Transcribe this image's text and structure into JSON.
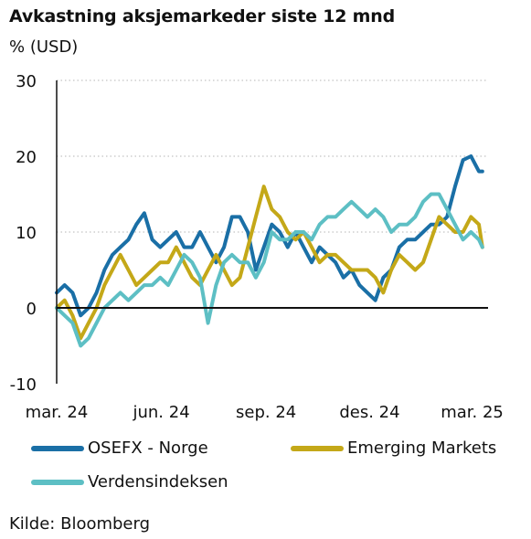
{
  "chart_data": {
    "type": "line",
    "title": "Avkastning aksjemarkeder siste 12 mnd",
    "ylabel": "% (USD)",
    "ylim": [
      -10,
      30
    ],
    "yticks": [
      30,
      20,
      10,
      0,
      -10
    ],
    "ytick_labels": [
      "30",
      "20",
      "10",
      "0",
      "-10"
    ],
    "x_range": [
      "2024-03-01",
      "2025-03-15"
    ],
    "xtick_labels": [
      {
        "date": "2024-03-01",
        "label": "mar. 24"
      },
      {
        "date": "2024-06-01",
        "label": "jun. 24"
      },
      {
        "date": "2024-09-01",
        "label": "sep. 24"
      },
      {
        "date": "2024-12-01",
        "label": "des. 24"
      },
      {
        "date": "2025-03-01",
        "label": "mar. 25"
      }
    ],
    "grid": "horizontal-dotted",
    "legend": "bottom",
    "series": [
      {
        "name": "OSEFX - Norge",
        "color": "#1a6fa6",
        "points": [
          [
            "2024-03-01",
            2
          ],
          [
            "2024-03-08",
            3
          ],
          [
            "2024-03-15",
            2
          ],
          [
            "2024-03-22",
            -1
          ],
          [
            "2024-03-29",
            0
          ],
          [
            "2024-04-05",
            2
          ],
          [
            "2024-04-12",
            5
          ],
          [
            "2024-04-19",
            7
          ],
          [
            "2024-04-26",
            8
          ],
          [
            "2024-05-03",
            9
          ],
          [
            "2024-05-10",
            11
          ],
          [
            "2024-05-17",
            12.5
          ],
          [
            "2024-05-24",
            9
          ],
          [
            "2024-05-31",
            8
          ],
          [
            "2024-06-07",
            9
          ],
          [
            "2024-06-14",
            10
          ],
          [
            "2024-06-21",
            8
          ],
          [
            "2024-06-28",
            8
          ],
          [
            "2024-07-05",
            10
          ],
          [
            "2024-07-12",
            8
          ],
          [
            "2024-07-19",
            6
          ],
          [
            "2024-07-26",
            8
          ],
          [
            "2024-08-02",
            12
          ],
          [
            "2024-08-09",
            12
          ],
          [
            "2024-08-16",
            10
          ],
          [
            "2024-08-23",
            5
          ],
          [
            "2024-08-30",
            8
          ],
          [
            "2024-09-06",
            11
          ],
          [
            "2024-09-13",
            10
          ],
          [
            "2024-09-20",
            8
          ],
          [
            "2024-09-27",
            10
          ],
          [
            "2024-10-04",
            8
          ],
          [
            "2024-10-11",
            6
          ],
          [
            "2024-10-18",
            8
          ],
          [
            "2024-10-25",
            7
          ],
          [
            "2024-11-01",
            6
          ],
          [
            "2024-11-08",
            4
          ],
          [
            "2024-11-15",
            5
          ],
          [
            "2024-11-22",
            3
          ],
          [
            "2024-11-29",
            2
          ],
          [
            "2024-12-06",
            1
          ],
          [
            "2024-12-13",
            4
          ],
          [
            "2024-12-20",
            5
          ],
          [
            "2024-12-27",
            8
          ],
          [
            "2025-01-03",
            9
          ],
          [
            "2025-01-10",
            9
          ],
          [
            "2025-01-17",
            10
          ],
          [
            "2025-01-24",
            11
          ],
          [
            "2025-01-31",
            11
          ],
          [
            "2025-02-07",
            12
          ],
          [
            "2025-02-14",
            16
          ],
          [
            "2025-02-21",
            19.5
          ],
          [
            "2025-02-28",
            20
          ],
          [
            "2025-03-07",
            18
          ],
          [
            "2025-03-10",
            18
          ]
        ]
      },
      {
        "name": "Emerging Markets",
        "color": "#c4a818",
        "points": [
          [
            "2024-03-01",
            0
          ],
          [
            "2024-03-08",
            1
          ],
          [
            "2024-03-15",
            -1
          ],
          [
            "2024-03-22",
            -4
          ],
          [
            "2024-03-29",
            -2
          ],
          [
            "2024-04-05",
            0
          ],
          [
            "2024-04-12",
            3
          ],
          [
            "2024-04-19",
            5
          ],
          [
            "2024-04-26",
            7
          ],
          [
            "2024-05-03",
            5
          ],
          [
            "2024-05-10",
            3
          ],
          [
            "2024-05-17",
            4
          ],
          [
            "2024-05-24",
            5
          ],
          [
            "2024-05-31",
            6
          ],
          [
            "2024-06-07",
            6
          ],
          [
            "2024-06-14",
            8
          ],
          [
            "2024-06-21",
            6
          ],
          [
            "2024-06-28",
            4
          ],
          [
            "2024-07-05",
            3
          ],
          [
            "2024-07-12",
            5
          ],
          [
            "2024-07-19",
            7
          ],
          [
            "2024-07-26",
            5
          ],
          [
            "2024-08-02",
            3
          ],
          [
            "2024-08-09",
            4
          ],
          [
            "2024-08-16",
            8
          ],
          [
            "2024-08-23",
            12
          ],
          [
            "2024-08-30",
            16
          ],
          [
            "2024-09-06",
            13
          ],
          [
            "2024-09-13",
            12
          ],
          [
            "2024-09-20",
            10
          ],
          [
            "2024-09-27",
            9
          ],
          [
            "2024-10-04",
            10
          ],
          [
            "2024-10-11",
            8
          ],
          [
            "2024-10-18",
            6
          ],
          [
            "2024-10-25",
            7
          ],
          [
            "2024-11-01",
            7
          ],
          [
            "2024-11-08",
            6
          ],
          [
            "2024-11-15",
            5
          ],
          [
            "2024-11-22",
            5
          ],
          [
            "2024-11-29",
            5
          ],
          [
            "2024-12-06",
            4
          ],
          [
            "2024-12-13",
            2
          ],
          [
            "2024-12-20",
            5
          ],
          [
            "2024-12-27",
            7
          ],
          [
            "2025-01-03",
            6
          ],
          [
            "2025-01-10",
            5
          ],
          [
            "2025-01-17",
            6
          ],
          [
            "2025-01-24",
            9
          ],
          [
            "2025-01-31",
            12
          ],
          [
            "2025-02-07",
            11
          ],
          [
            "2025-02-14",
            10
          ],
          [
            "2025-02-21",
            10
          ],
          [
            "2025-02-28",
            12
          ],
          [
            "2025-03-07",
            11
          ],
          [
            "2025-03-10",
            8
          ]
        ]
      },
      {
        "name": "Verdensindeksen",
        "color": "#5dbfc4",
        "points": [
          [
            "2024-03-01",
            0
          ],
          [
            "2024-03-08",
            -1
          ],
          [
            "2024-03-15",
            -2
          ],
          [
            "2024-03-22",
            -5
          ],
          [
            "2024-03-29",
            -4
          ],
          [
            "2024-04-05",
            -2
          ],
          [
            "2024-04-12",
            0
          ],
          [
            "2024-04-19",
            1
          ],
          [
            "2024-04-26",
            2
          ],
          [
            "2024-05-03",
            1
          ],
          [
            "2024-05-10",
            2
          ],
          [
            "2024-05-17",
            3
          ],
          [
            "2024-05-24",
            3
          ],
          [
            "2024-05-31",
            4
          ],
          [
            "2024-06-07",
            3
          ],
          [
            "2024-06-14",
            5
          ],
          [
            "2024-06-21",
            7
          ],
          [
            "2024-06-28",
            6
          ],
          [
            "2024-07-05",
            4
          ],
          [
            "2024-07-12",
            -2
          ],
          [
            "2024-07-19",
            3
          ],
          [
            "2024-07-26",
            6
          ],
          [
            "2024-08-02",
            7
          ],
          [
            "2024-08-09",
            6
          ],
          [
            "2024-08-16",
            6
          ],
          [
            "2024-08-23",
            4
          ],
          [
            "2024-08-30",
            6
          ],
          [
            "2024-09-06",
            10
          ],
          [
            "2024-09-13",
            9
          ],
          [
            "2024-09-20",
            9
          ],
          [
            "2024-09-27",
            10
          ],
          [
            "2024-10-04",
            10
          ],
          [
            "2024-10-11",
            9
          ],
          [
            "2024-10-18",
            11
          ],
          [
            "2024-10-25",
            12
          ],
          [
            "2024-11-01",
            12
          ],
          [
            "2024-11-08",
            13
          ],
          [
            "2024-11-15",
            14
          ],
          [
            "2024-11-22",
            13
          ],
          [
            "2024-11-29",
            12
          ],
          [
            "2024-12-06",
            13
          ],
          [
            "2024-12-13",
            12
          ],
          [
            "2024-12-20",
            10
          ],
          [
            "2024-12-27",
            11
          ],
          [
            "2025-01-03",
            11
          ],
          [
            "2025-01-10",
            12
          ],
          [
            "2025-01-17",
            14
          ],
          [
            "2025-01-24",
            15
          ],
          [
            "2025-01-31",
            15
          ],
          [
            "2025-02-07",
            13
          ],
          [
            "2025-02-14",
            11
          ],
          [
            "2025-02-21",
            9
          ],
          [
            "2025-02-28",
            10
          ],
          [
            "2025-03-07",
            9
          ],
          [
            "2025-03-10",
            8
          ]
        ]
      }
    ],
    "source": "Kilde: Bloomberg"
  }
}
